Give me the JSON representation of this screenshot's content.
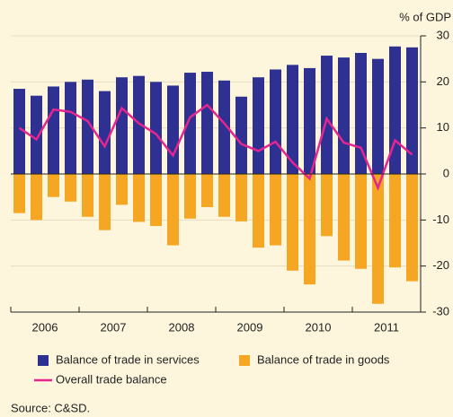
{
  "chart_data": {
    "type": "bar",
    "y_label": "% of GDP",
    "source": "Source: C&SD.",
    "groups": [
      "2006",
      "2007",
      "2008",
      "2009",
      "2010",
      "2011"
    ],
    "categories": [
      null,
      null,
      null,
      null,
      null,
      null,
      null,
      null,
      null,
      null,
      null,
      null,
      null,
      null,
      null,
      null,
      null,
      null,
      null,
      null,
      null,
      null,
      null,
      null
    ],
    "series": [
      {
        "name": "Balance of trade in services",
        "color": "#2e3192",
        "kind": "bar",
        "values": [
          18.5,
          17,
          19,
          20,
          20.5,
          18,
          21,
          21.3,
          20,
          19.2,
          22,
          22.2,
          20.3,
          16.8,
          21,
          22.7,
          23.7,
          23,
          25.7,
          25.3,
          26.3,
          25,
          27.7,
          27.5
        ]
      },
      {
        "name": "Balance of trade in goods",
        "color": "#f5a623",
        "kind": "bar",
        "values": [
          -8.5,
          -10,
          -5,
          -6,
          -9.3,
          -12.2,
          -6.7,
          -10.4,
          -11.3,
          -15.5,
          -9.7,
          -7.2,
          -9.3,
          -10.3,
          -16,
          -15.5,
          -21,
          -24,
          -13.5,
          -18.8,
          -20.6,
          -28.2,
          -20.3,
          -23.3
        ]
      },
      {
        "name": "Overall trade balance",
        "color": "#e6258f",
        "kind": "line",
        "values": [
          10,
          7.5,
          14,
          13.5,
          11.5,
          6,
          14.3,
          11,
          8.7,
          4,
          12.3,
          15,
          11,
          6.5,
          5,
          7,
          2.5,
          -1,
          12,
          6.8,
          5.7,
          -3,
          7.3,
          4.2
        ]
      }
    ],
    "ylim": [
      -30,
      30
    ],
    "yticks": [
      -30,
      -20,
      -10,
      0,
      10,
      20,
      30
    ],
    "grid": true
  }
}
